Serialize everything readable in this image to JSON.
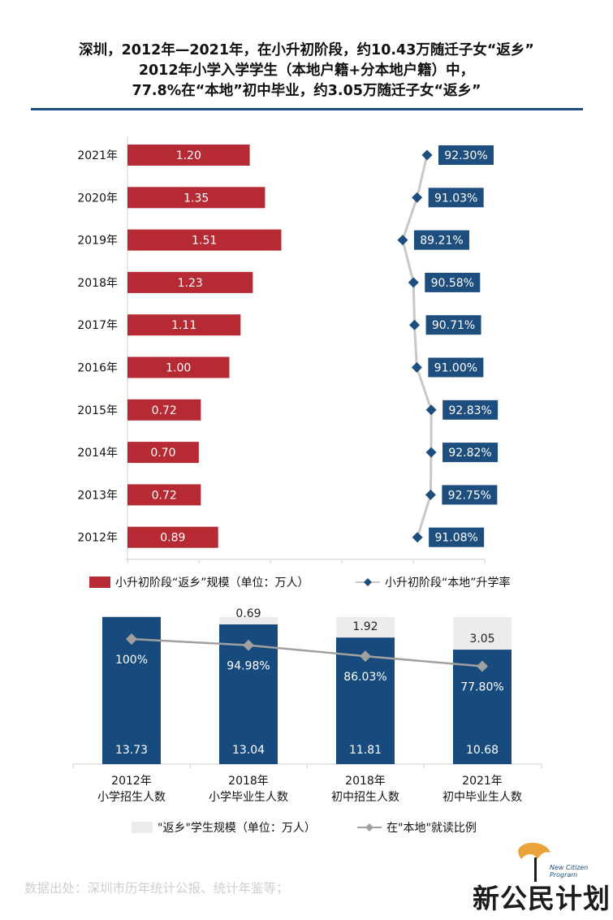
{
  "title_lines": [
    "深圳，2012年—2021年，在小升初阶段，约10.43万随迁子女“返乡”",
    "2012年小学入学学生（本地户籍+分本地户籍）中，",
    "77.8%在“本地”初中毕业，约3.05万随迁子女“返乡”"
  ],
  "chart_data": [
    {
      "type": "bar",
      "orientation": "horizontal",
      "categories": [
        "2021年",
        "2020年",
        "2019年",
        "2018年",
        "2017年",
        "2016年",
        "2015年",
        "2014年",
        "2013年",
        "2012年"
      ],
      "series": [
        {
          "name": "小升初阶段“返乡”规模（单位：万人）",
          "kind": "bar",
          "values": [
            1.2,
            1.35,
            1.51,
            1.23,
            1.11,
            1.0,
            0.72,
            0.7,
            0.72,
            0.89
          ],
          "labels": [
            "1.20",
            "1.35",
            "1.51",
            "1.23",
            "1.11",
            "1.00",
            "0.72",
            "0.70",
            "0.72",
            "0.89"
          ]
        },
        {
          "name": "小升初阶段“本地”升学率",
          "kind": "line",
          "values": [
            92.3,
            91.03,
            89.21,
            90.58,
            90.71,
            91.0,
            92.83,
            92.82,
            92.75,
            91.08
          ],
          "labels": [
            "92.30%",
            "91.03%",
            "89.21%",
            "90.58%",
            "90.71%",
            "91.00%",
            "92.83%",
            "92.82%",
            "92.75%",
            "91.08%"
          ]
        }
      ],
      "legend_position": "bottom",
      "colors": {
        "bar": "#b52a33",
        "line": "#c8c8c8",
        "marker": "#1d4e7e",
        "label_bg": "#1d4e7e"
      }
    },
    {
      "type": "bar",
      "stacked": true,
      "categories": [
        [
          "2012年",
          "小学招生人数"
        ],
        [
          "2018年",
          "小学毕业生人数"
        ],
        [
          "2018年",
          "初中招生人数"
        ],
        [
          "2021年",
          "初中毕业生人数"
        ]
      ],
      "series": [
        {
          "name": "",
          "kind": "bar",
          "values": [
            13.73,
            13.04,
            11.81,
            10.68
          ],
          "labels": [
            "13.73",
            "13.04",
            "11.81",
            "10.68"
          ]
        },
        {
          "name": "\"返乡\"学生规模（单位：万人）",
          "kind": "bar",
          "values": [
            0,
            0.69,
            1.92,
            3.05
          ],
          "labels": [
            "",
            "0.69",
            "1.92",
            "3.05"
          ]
        },
        {
          "name": "在\"本地\"就读比例",
          "kind": "line",
          "values": [
            100,
            94.98,
            86.03,
            77.8
          ],
          "labels": [
            "100%",
            "94.98%",
            "86.03%",
            "77.80%"
          ]
        }
      ],
      "legend_position": "bottom",
      "colors": {
        "bar": "#174b7e",
        "stack": "#ececec",
        "line": "#a0a0a0"
      }
    }
  ],
  "source": "数据出处：深圳市历年统计公报、统计年鉴等；",
  "logo": {
    "text": "新公民计划",
    "small_line1": "New Citizen",
    "small_line2": "Program"
  }
}
